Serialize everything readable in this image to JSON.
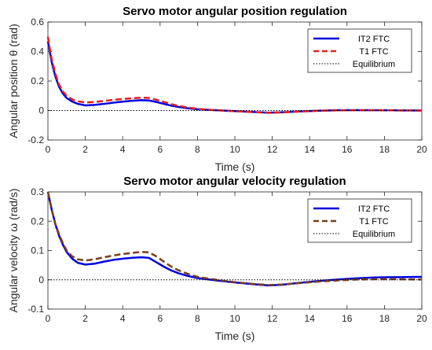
{
  "chart_data": [
    {
      "type": "line",
      "title": "Servo motor angular position regulation",
      "xlabel": "Time (s)",
      "ylabel": "Angular position θ (rad)",
      "xlim": [
        0,
        20
      ],
      "ylim": [
        -0.2,
        0.6
      ],
      "xticks": [
        0,
        2,
        4,
        6,
        8,
        10,
        12,
        14,
        16,
        18,
        20
      ],
      "yticks": [
        -0.2,
        0,
        0.2,
        0.4,
        0.6
      ],
      "grid": false,
      "legend": "top-right",
      "series": [
        {
          "name": "IT2 FTC",
          "color": "#0000dd",
          "style": "solid",
          "x": [
            0,
            0.1,
            0.2,
            0.4,
            0.6,
            0.8,
            1.0,
            1.3,
            1.6,
            2.0,
            2.5,
            3.0,
            3.5,
            4.0,
            4.5,
            5.0,
            5.4,
            5.8,
            6.2,
            6.6,
            7.0,
            7.5,
            8.0,
            9.0,
            10.0,
            11.0,
            11.8,
            12.5,
            13.5,
            14.5,
            15.5,
            16.5,
            17.5,
            18.5,
            20.0
          ],
          "y": [
            0.47,
            0.4,
            0.33,
            0.23,
            0.16,
            0.115,
            0.085,
            0.06,
            0.045,
            0.035,
            0.038,
            0.045,
            0.053,
            0.06,
            0.066,
            0.07,
            0.068,
            0.058,
            0.045,
            0.033,
            0.024,
            0.015,
            0.008,
            0.002,
            -0.004,
            -0.01,
            -0.015,
            -0.012,
            -0.006,
            -0.001,
            0.002,
            0.003,
            0.002,
            0.001,
            0.0
          ]
        },
        {
          "name": "T1 FTC",
          "color": "#e8201e",
          "style": "dashed",
          "x": [
            0,
            0.1,
            0.2,
            0.4,
            0.6,
            0.8,
            1.0,
            1.3,
            1.6,
            2.0,
            2.5,
            3.0,
            3.5,
            4.0,
            4.5,
            5.0,
            5.4,
            5.8,
            6.2,
            6.6,
            7.0,
            7.5,
            8.0,
            9.0,
            10.0,
            11.0,
            11.8,
            12.5,
            13.5,
            14.5,
            15.5,
            16.5,
            17.5,
            18.5,
            20.0
          ],
          "y": [
            0.5,
            0.42,
            0.35,
            0.25,
            0.175,
            0.13,
            0.1,
            0.075,
            0.062,
            0.055,
            0.058,
            0.065,
            0.072,
            0.078,
            0.083,
            0.087,
            0.085,
            0.073,
            0.058,
            0.043,
            0.031,
            0.02,
            0.011,
            0.002,
            -0.005,
            -0.011,
            -0.016,
            -0.013,
            -0.007,
            -0.002,
            0.001,
            0.002,
            0.002,
            0.001,
            0.0
          ]
        },
        {
          "name": "Equilibrium",
          "color": "#000000",
          "style": "dotted",
          "x": [
            0,
            20
          ],
          "y": [
            0,
            0
          ]
        }
      ]
    },
    {
      "type": "line",
      "title": "Servo motor angular velocity regulation",
      "xlabel": "Time (s)",
      "ylabel": "Angular velocity ω (rad/s)",
      "xlim": [
        0,
        20
      ],
      "ylim": [
        -0.1,
        0.3
      ],
      "xticks": [
        0,
        2,
        4,
        6,
        8,
        10,
        12,
        14,
        16,
        18,
        20
      ],
      "yticks": [
        -0.1,
        0,
        0.1,
        0.2,
        0.3
      ],
      "grid": false,
      "legend": "top-right",
      "series": [
        {
          "name": "IT2 FTC",
          "color": "#0000dd",
          "style": "solid",
          "x": [
            0,
            0.1,
            0.2,
            0.4,
            0.6,
            0.8,
            1.0,
            1.3,
            1.6,
            2.0,
            2.5,
            3.0,
            3.5,
            4.0,
            4.5,
            5.0,
            5.4,
            5.8,
            6.2,
            6.6,
            7.0,
            7.5,
            8.0,
            9.0,
            10.0,
            11.0,
            11.8,
            12.5,
            13.5,
            14.5,
            15.5,
            16.5,
            17.5,
            18.5,
            20.0
          ],
          "y": [
            0.3,
            0.27,
            0.24,
            0.19,
            0.15,
            0.12,
            0.095,
            0.072,
            0.058,
            0.052,
            0.055,
            0.062,
            0.068,
            0.072,
            0.075,
            0.077,
            0.075,
            0.06,
            0.045,
            0.032,
            0.022,
            0.013,
            0.006,
            -0.002,
            -0.009,
            -0.015,
            -0.019,
            -0.017,
            -0.01,
            -0.004,
            0.001,
            0.005,
            0.008,
            0.009,
            0.01
          ]
        },
        {
          "name": "T1 FTC",
          "color": "#7a3e1a",
          "style": "dashed",
          "x": [
            0,
            0.1,
            0.2,
            0.4,
            0.6,
            0.8,
            1.0,
            1.3,
            1.6,
            2.0,
            2.5,
            3.0,
            3.5,
            4.0,
            4.5,
            5.0,
            5.4,
            5.8,
            6.2,
            6.6,
            7.0,
            7.5,
            8.0,
            9.0,
            10.0,
            11.0,
            11.8,
            12.5,
            13.5,
            14.5,
            15.5,
            16.5,
            17.5,
            18.5,
            20.0
          ],
          "y": [
            0.3,
            0.27,
            0.24,
            0.19,
            0.155,
            0.125,
            0.1,
            0.08,
            0.07,
            0.066,
            0.07,
            0.077,
            0.083,
            0.088,
            0.092,
            0.095,
            0.094,
            0.08,
            0.062,
            0.045,
            0.032,
            0.02,
            0.01,
            0.0,
            -0.008,
            -0.014,
            -0.018,
            -0.016,
            -0.011,
            -0.006,
            -0.002,
            0.001,
            0.002,
            0.002,
            0.001
          ]
        },
        {
          "name": "Equilibrium",
          "color": "#000000",
          "style": "dotted",
          "x": [
            0,
            20
          ],
          "y": [
            0,
            0
          ]
        }
      ]
    }
  ]
}
